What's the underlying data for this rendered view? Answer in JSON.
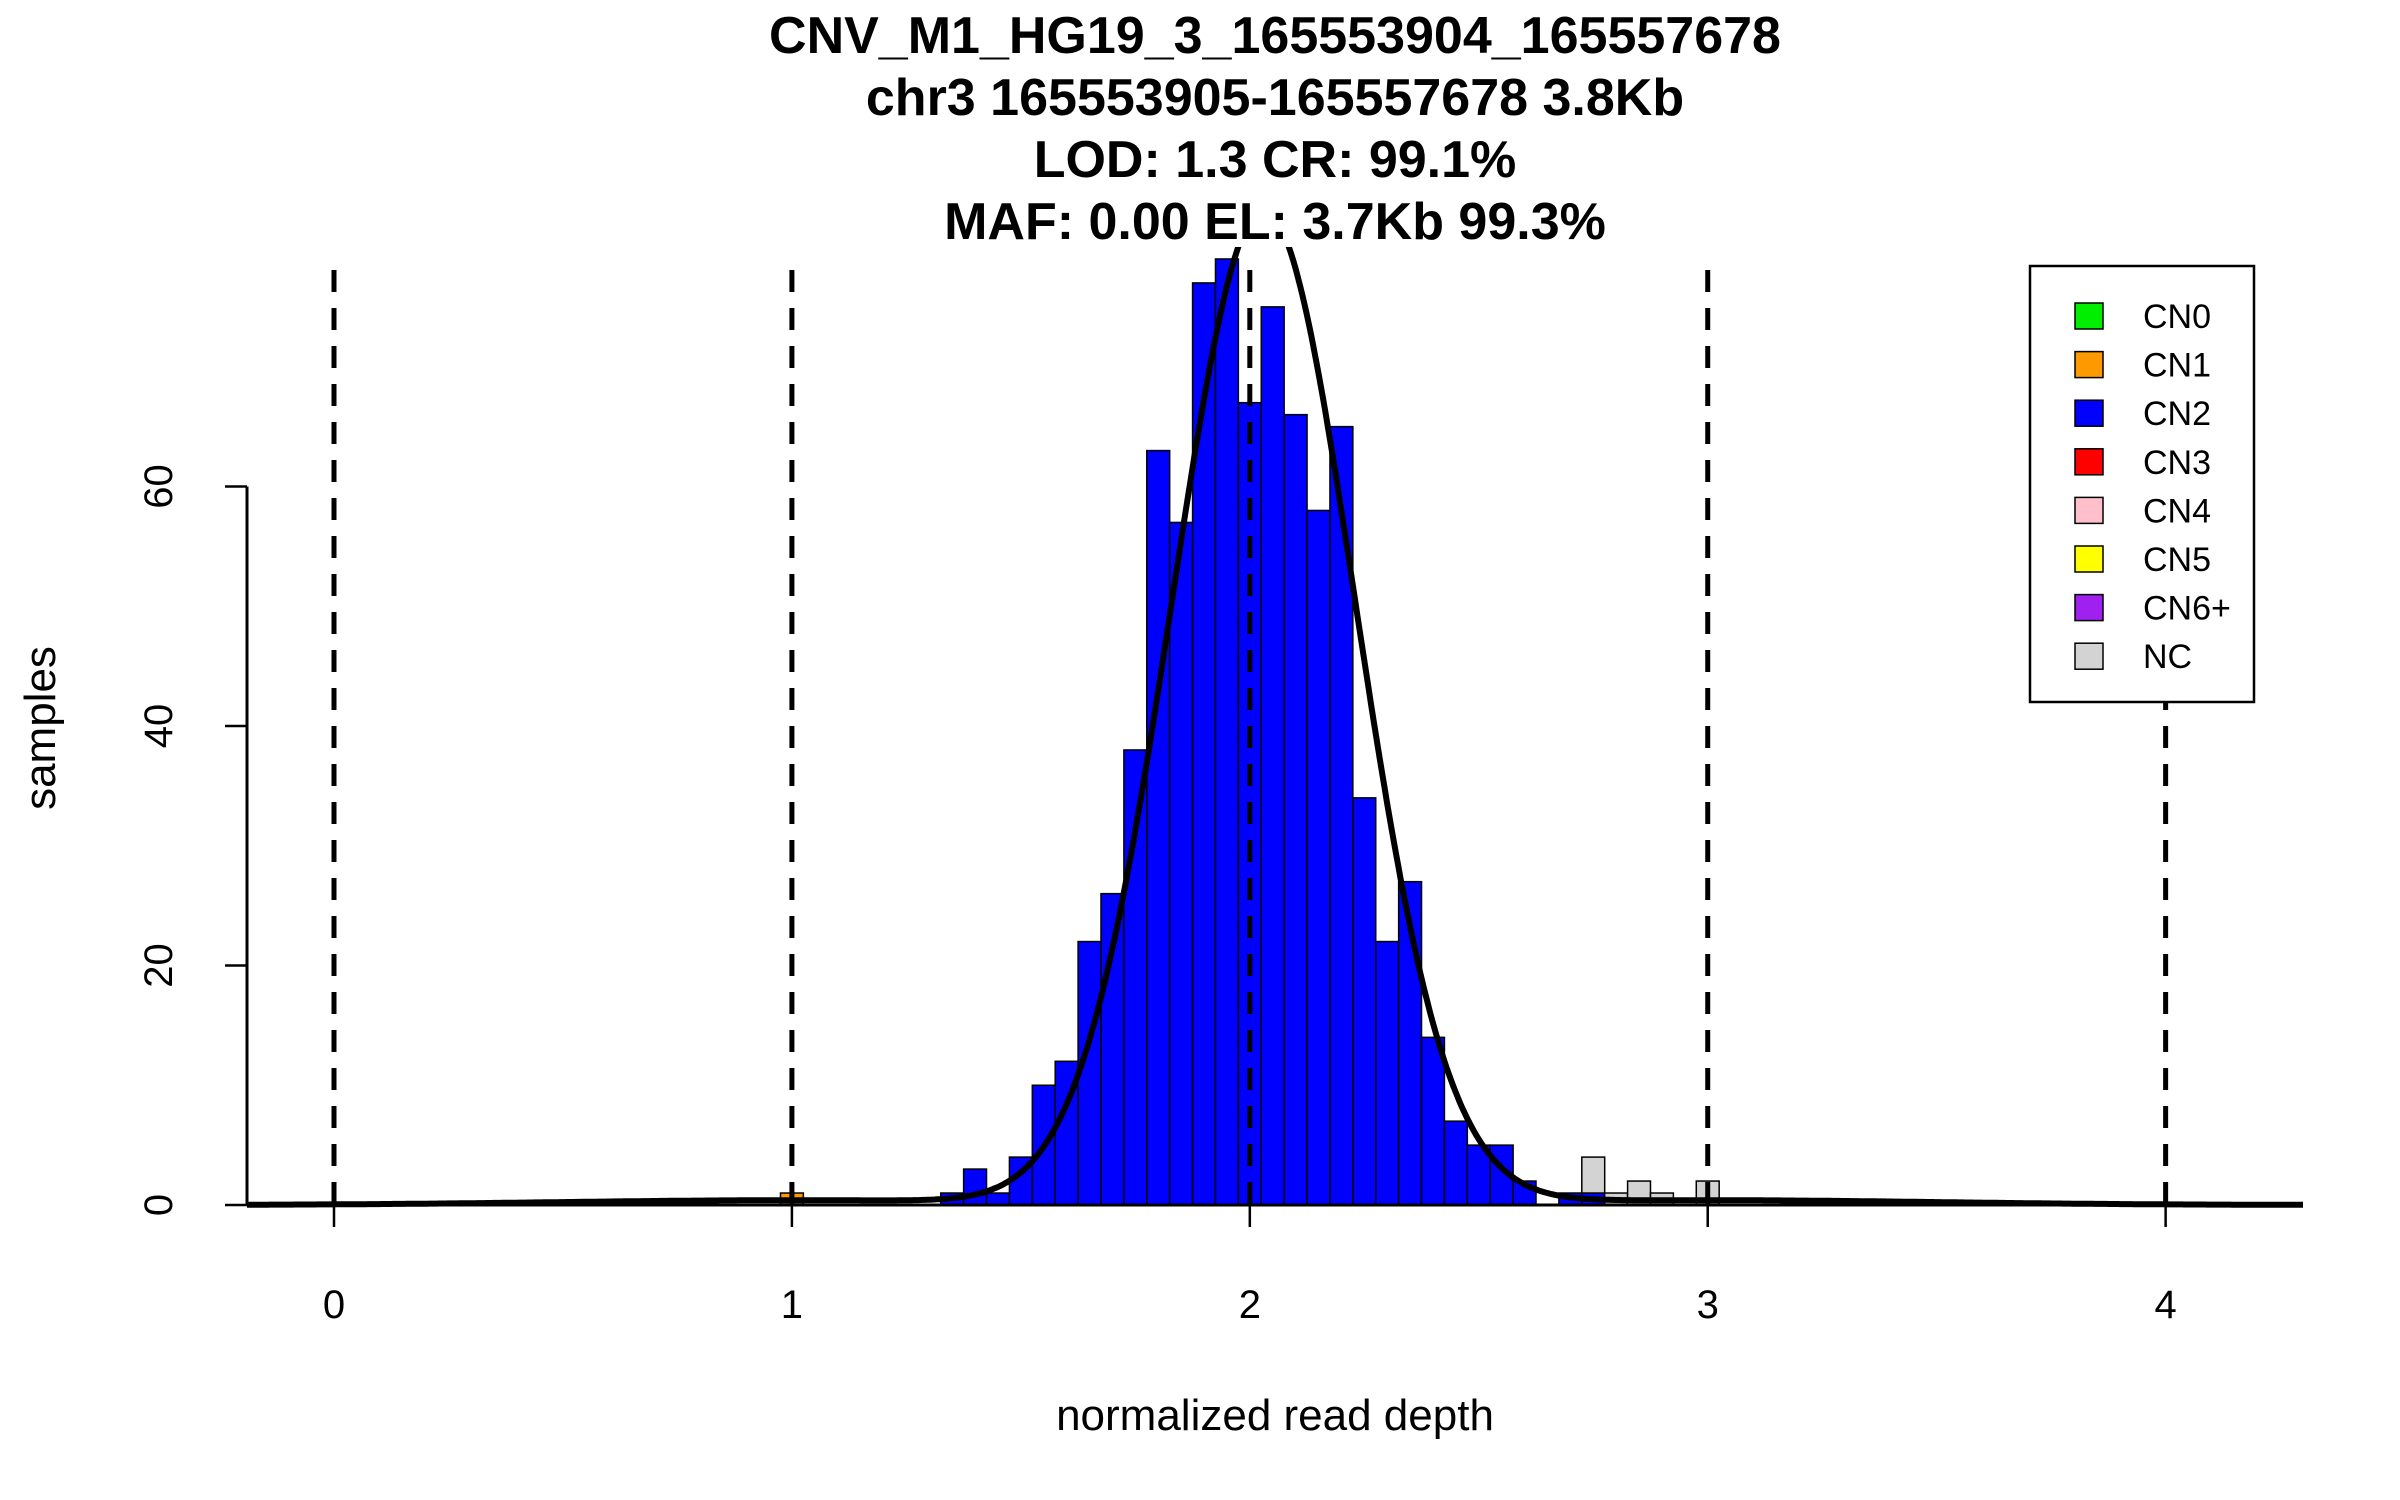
{
  "chart_data": {
    "type": "bar",
    "title_lines": [
      "CNV_M1_HG19_3_165553904_165557678",
      "chr3 165553905-165557678 3.8Kb",
      "LOD: 1.3 CR: 99.1%",
      "MAF: 0.00 EL: 3.7Kb 99.3%"
    ],
    "xlabel": "normalized read depth",
    "ylabel": "samples",
    "xlim": [
      -0.19,
      4.3
    ],
    "ylim": [
      0,
      80
    ],
    "x_ticks": [
      0,
      1,
      2,
      3,
      4
    ],
    "y_ticks": [
      0,
      20,
      40,
      60
    ],
    "bin_width": 0.05,
    "vertical_dashed_lines": [
      0,
      1,
      2,
      3,
      4
    ],
    "colors": {
      "CN0": "#00ee00",
      "CN1": "#ff9900",
      "CN2": "#0000ff",
      "CN3": "#ff0000",
      "CN4": "#ffc0cb",
      "CN5": "#ffff00",
      "CN6+": "#a020f0",
      "NC": "#d3d3d3"
    },
    "legend": {
      "position": "top-right",
      "entries": [
        "CN0",
        "CN1",
        "CN2",
        "CN3",
        "CN4",
        "CN5",
        "CN6+",
        "NC"
      ]
    },
    "series": [
      {
        "name": "CN1",
        "bins": [
          {
            "x0": 0.975,
            "x1": 1.025,
            "count": 1
          }
        ]
      },
      {
        "name": "CN2",
        "bins": [
          {
            "x0": 1.325,
            "x1": 1.375,
            "count": 1
          },
          {
            "x0": 1.375,
            "x1": 1.425,
            "count": 3
          },
          {
            "x0": 1.425,
            "x1": 1.475,
            "count": 1
          },
          {
            "x0": 1.475,
            "x1": 1.525,
            "count": 4
          },
          {
            "x0": 1.525,
            "x1": 1.575,
            "count": 10
          },
          {
            "x0": 1.575,
            "x1": 1.625,
            "count": 12
          },
          {
            "x0": 1.625,
            "x1": 1.675,
            "count": 22
          },
          {
            "x0": 1.675,
            "x1": 1.725,
            "count": 26
          },
          {
            "x0": 1.725,
            "x1": 1.775,
            "count": 38
          },
          {
            "x0": 1.775,
            "x1": 1.825,
            "count": 63
          },
          {
            "x0": 1.825,
            "x1": 1.875,
            "count": 57
          },
          {
            "x0": 1.875,
            "x1": 1.925,
            "count": 77
          },
          {
            "x0": 1.925,
            "x1": 1.975,
            "count": 79
          },
          {
            "x0": 1.975,
            "x1": 2.025,
            "count": 67
          },
          {
            "x0": 2.025,
            "x1": 2.075,
            "count": 75
          },
          {
            "x0": 2.075,
            "x1": 2.125,
            "count": 66
          },
          {
            "x0": 2.125,
            "x1": 2.175,
            "count": 58
          },
          {
            "x0": 2.175,
            "x1": 2.225,
            "count": 65
          },
          {
            "x0": 2.225,
            "x1": 2.275,
            "count": 34
          },
          {
            "x0": 2.275,
            "x1": 2.325,
            "count": 22
          },
          {
            "x0": 2.325,
            "x1": 2.375,
            "count": 27
          },
          {
            "x0": 2.375,
            "x1": 2.425,
            "count": 14
          },
          {
            "x0": 2.425,
            "x1": 2.475,
            "count": 7
          },
          {
            "x0": 2.475,
            "x1": 2.525,
            "count": 5
          },
          {
            "x0": 2.525,
            "x1": 2.575,
            "count": 5
          },
          {
            "x0": 2.575,
            "x1": 2.625,
            "count": 2
          },
          {
            "x0": 2.675,
            "x1": 2.725,
            "count": 1
          },
          {
            "x0": 2.725,
            "x1": 2.775,
            "count": 1
          }
        ]
      },
      {
        "name": "NC",
        "bins": [
          {
            "x0": 2.725,
            "x1": 2.775,
            "count": 3
          },
          {
            "x0": 2.775,
            "x1": 2.825,
            "count": 1
          },
          {
            "x0": 2.825,
            "x1": 2.875,
            "count": 2
          },
          {
            "x0": 2.875,
            "x1": 2.925,
            "count": 1
          },
          {
            "x0": 2.975,
            "x1": 3.025,
            "count": 2
          }
        ]
      }
    ],
    "fit_curve": {
      "description": "normal mixture density",
      "mean": 2.03,
      "sd": 0.2,
      "peak": 83,
      "minor_components": [
        {
          "mean": 1.0,
          "sd": 0.5,
          "peak": 0.4
        },
        {
          "mean": 3.0,
          "sd": 0.5,
          "peak": 0.4
        }
      ]
    }
  }
}
